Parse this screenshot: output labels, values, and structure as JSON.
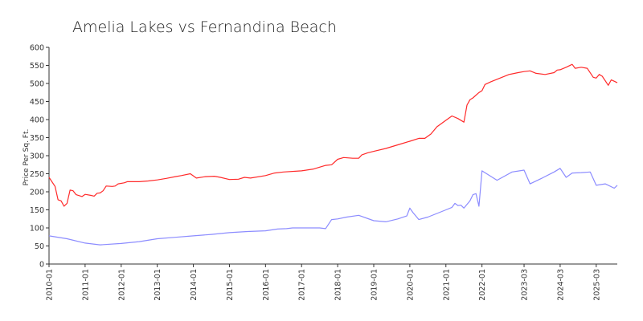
{
  "chart_data": {
    "type": "line",
    "title": "Amelia Lakes vs Fernandina Beach",
    "ylabel": "Price Per Sq. Ft.",
    "xlabel": "",
    "ylim": [
      0,
      600
    ],
    "yticks": [
      0,
      50,
      100,
      150,
      200,
      250,
      300,
      350,
      400,
      450,
      500,
      550,
      600
    ],
    "xlim": [
      "2010-01",
      "2025-10"
    ],
    "xticks": [
      "2010-01",
      "2011-01",
      "2012-01",
      "2013-01",
      "2014-01",
      "2015-01",
      "2016-01",
      "2017-01",
      "2018-01",
      "2019-01",
      "2020-01",
      "2021-01",
      "2022-01",
      "2023-03",
      "2024-03",
      "2025-03"
    ],
    "grid": false,
    "legend": "none",
    "colors": {
      "series_1": "#ff2a2a",
      "series_2": "#8c8cff",
      "axis": "#333333"
    },
    "series": [
      {
        "color": "#ff2a2a",
        "points": [
          [
            "2010-01",
            240
          ],
          [
            "2010-03",
            215
          ],
          [
            "2010-04",
            178
          ],
          [
            "2010-05",
            175
          ],
          [
            "2010-06",
            160
          ],
          [
            "2010-07",
            168
          ],
          [
            "2010-08",
            205
          ],
          [
            "2010-09",
            203
          ],
          [
            "2010-10",
            192
          ],
          [
            "2010-12",
            187
          ],
          [
            "2011-01",
            193
          ],
          [
            "2011-03",
            190
          ],
          [
            "2011-04",
            188
          ],
          [
            "2011-05",
            196
          ],
          [
            "2011-06",
            197
          ],
          [
            "2011-07",
            203
          ],
          [
            "2011-08",
            216
          ],
          [
            "2011-10",
            215
          ],
          [
            "2011-11",
            216
          ],
          [
            "2011-12",
            222
          ],
          [
            "2012-02",
            225
          ],
          [
            "2012-03",
            228
          ],
          [
            "2012-07",
            228
          ],
          [
            "2012-10",
            230
          ],
          [
            "2013-01",
            233
          ],
          [
            "2013-04",
            237
          ],
          [
            "2013-07",
            242
          ],
          [
            "2013-09",
            245
          ],
          [
            "2013-12",
            250
          ],
          [
            "2014-02",
            238
          ],
          [
            "2014-05",
            242
          ],
          [
            "2014-08",
            243
          ],
          [
            "2014-10",
            240
          ],
          [
            "2015-01",
            234
          ],
          [
            "2015-04",
            235
          ],
          [
            "2015-06",
            240
          ],
          [
            "2015-08",
            238
          ],
          [
            "2016-01",
            245
          ],
          [
            "2016-04",
            252
          ],
          [
            "2016-07",
            255
          ],
          [
            "2017-01",
            258
          ],
          [
            "2017-05",
            263
          ],
          [
            "2017-09",
            273
          ],
          [
            "2017-11",
            275
          ],
          [
            "2018-01",
            290
          ],
          [
            "2018-03",
            295
          ],
          [
            "2018-06",
            293
          ],
          [
            "2018-08",
            293
          ],
          [
            "2018-09",
            302
          ],
          [
            "2018-11",
            308
          ],
          [
            "2019-01",
            312
          ],
          [
            "2019-05",
            320
          ],
          [
            "2019-09",
            330
          ],
          [
            "2020-01",
            340
          ],
          [
            "2020-04",
            348
          ],
          [
            "2020-06",
            348
          ],
          [
            "2020-08",
            360
          ],
          [
            "2020-10",
            380
          ],
          [
            "2021-01",
            398
          ],
          [
            "2021-03",
            410
          ],
          [
            "2021-05",
            403
          ],
          [
            "2021-07",
            393
          ],
          [
            "2021-08",
            440
          ],
          [
            "2021-09",
            455
          ],
          [
            "2021-10",
            460
          ],
          [
            "2021-12",
            475
          ],
          [
            "2022-01",
            480
          ],
          [
            "2022-02",
            497
          ],
          [
            "2022-04",
            505
          ],
          [
            "2022-07",
            515
          ],
          [
            "2022-10",
            525
          ],
          [
            "2023-01",
            530
          ],
          [
            "2023-03",
            533
          ],
          [
            "2023-05",
            535
          ],
          [
            "2023-07",
            528
          ],
          [
            "2023-10",
            525
          ],
          [
            "2024-01",
            530
          ],
          [
            "2024-02",
            537
          ],
          [
            "2024-03",
            538
          ],
          [
            "2024-05",
            545
          ],
          [
            "2024-07",
            553
          ],
          [
            "2024-08",
            542
          ],
          [
            "2024-10",
            545
          ],
          [
            "2024-12",
            542
          ],
          [
            "2025-02",
            517
          ],
          [
            "2025-03",
            515
          ],
          [
            "2025-04",
            525
          ],
          [
            "2025-05",
            520
          ],
          [
            "2025-07",
            495
          ],
          [
            "2025-08",
            510
          ],
          [
            "2025-10",
            502
          ]
        ]
      },
      {
        "color": "#8c8cff",
        "points": [
          [
            "2010-01",
            78
          ],
          [
            "2010-07",
            70
          ],
          [
            "2011-01",
            58
          ],
          [
            "2011-06",
            53
          ],
          [
            "2012-01",
            57
          ],
          [
            "2012-07",
            62
          ],
          [
            "2013-01",
            70
          ],
          [
            "2013-07",
            74
          ],
          [
            "2014-01",
            78
          ],
          [
            "2014-07",
            82
          ],
          [
            "2015-01",
            87
          ],
          [
            "2015-07",
            90
          ],
          [
            "2016-01",
            92
          ],
          [
            "2016-05",
            97
          ],
          [
            "2016-08",
            98
          ],
          [
            "2016-10",
            100
          ],
          [
            "2017-01",
            100
          ],
          [
            "2017-07",
            100
          ],
          [
            "2017-09",
            98
          ],
          [
            "2017-11",
            123
          ],
          [
            "2018-01",
            125
          ],
          [
            "2018-04",
            130
          ],
          [
            "2018-08",
            135
          ],
          [
            "2019-01",
            120
          ],
          [
            "2019-05",
            117
          ],
          [
            "2019-09",
            125
          ],
          [
            "2019-12",
            133
          ],
          [
            "2020-01",
            155
          ],
          [
            "2020-02",
            143
          ],
          [
            "2020-04",
            123
          ],
          [
            "2020-07",
            130
          ],
          [
            "2020-10",
            140
          ],
          [
            "2021-01",
            150
          ],
          [
            "2021-03",
            157
          ],
          [
            "2021-04",
            168
          ],
          [
            "2021-05",
            162
          ],
          [
            "2021-06",
            163
          ],
          [
            "2021-07",
            155
          ],
          [
            "2021-09",
            175
          ],
          [
            "2021-10",
            192
          ],
          [
            "2021-11",
            195
          ],
          [
            "2021-12",
            160
          ],
          [
            "2022-01",
            258
          ],
          [
            "2022-06",
            232
          ],
          [
            "2022-11",
            255
          ],
          [
            "2023-03",
            260
          ],
          [
            "2023-05",
            222
          ],
          [
            "2023-09",
            238
          ],
          [
            "2024-01",
            255
          ],
          [
            "2024-03",
            265
          ],
          [
            "2024-05",
            240
          ],
          [
            "2024-07",
            252
          ],
          [
            "2024-10",
            253
          ],
          [
            "2025-01",
            255
          ],
          [
            "2025-03",
            218
          ],
          [
            "2025-06",
            222
          ],
          [
            "2025-09",
            210
          ],
          [
            "2025-10",
            218
          ]
        ]
      }
    ]
  }
}
